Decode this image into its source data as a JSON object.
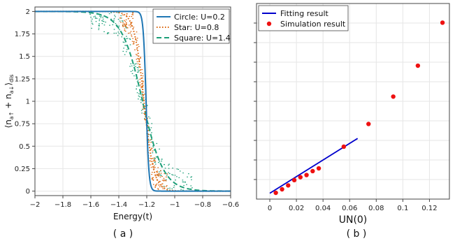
{
  "chart_data": [
    {
      "panel": "a",
      "type": "line",
      "caption": "( a )",
      "xlabel": "Energy(t)",
      "ylabel_html": "⟨n",
      "ylabel_text": "⟨n a↑ + n a↓⟩ dis",
      "xlim": [
        -2,
        -0.6
      ],
      "ylim": [
        -0.05,
        2.05
      ],
      "xticks": [
        -2,
        -1.8,
        -1.6,
        -1.4,
        -1.2,
        -1,
        -0.8,
        -0.6
      ],
      "xticklabels": [
        "−2",
        "−1.8",
        "−1.6",
        "−1.4",
        "−1.2",
        "−1",
        "−0.8",
        "−0.6"
      ],
      "yticks": [
        0,
        0.25,
        0.5,
        0.75,
        1,
        1.25,
        1.5,
        1.75,
        2
      ],
      "yticklabels": [
        "0",
        "0.25",
        "0.5",
        "0.75",
        "1",
        "1.25",
        "1.5",
        "1.75",
        "2"
      ],
      "grid": true,
      "legend_position": "top-right",
      "series": [
        {
          "name": "Circle: U=0.2",
          "color": "#1f77b4",
          "style": "solid",
          "center": -1.205,
          "width": 0.01
        },
        {
          "name": "Star: U=0.8",
          "color": "#d95f02",
          "style": "dotted",
          "center": -1.22,
          "width": 0.035
        },
        {
          "name": "Square: U=1.4",
          "color": "#1b9e77",
          "style": "dashed",
          "center": -1.23,
          "width": 0.075
        }
      ]
    },
    {
      "panel": "b",
      "type": "scatter",
      "caption": "( b )",
      "xlabel": "UN(0)",
      "xlim": [
        -0.01,
        0.135
      ],
      "ylim": [
        0,
        1
      ],
      "xticks": [
        0,
        0.02,
        0.04,
        0.06,
        0.08,
        0.1,
        0.12
      ],
      "xticklabels": [
        "0",
        "0.02",
        "0.04",
        "0.06",
        "0.08",
        "0.1",
        "0.12"
      ],
      "grid": true,
      "legend_position": "top-left",
      "series": [
        {
          "name": "Fitting result",
          "type": "line",
          "color": "#0000cc",
          "x": [
            0.0,
            0.066
          ],
          "y": [
            0.03,
            0.31
          ]
        },
        {
          "name": "Simulation result",
          "type": "scatter",
          "color": "#ee1111",
          "x": [
            0.0045,
            0.0092,
            0.0138,
            0.0184,
            0.023,
            0.0276,
            0.0322,
            0.0368,
            0.0556,
            0.0742,
            0.0928,
            0.1113,
            0.1298
          ],
          "y": [
            0.032,
            0.05,
            0.07,
            0.097,
            0.112,
            0.123,
            0.143,
            0.157,
            0.268,
            0.384,
            0.524,
            0.682,
            0.902
          ]
        }
      ]
    }
  ]
}
